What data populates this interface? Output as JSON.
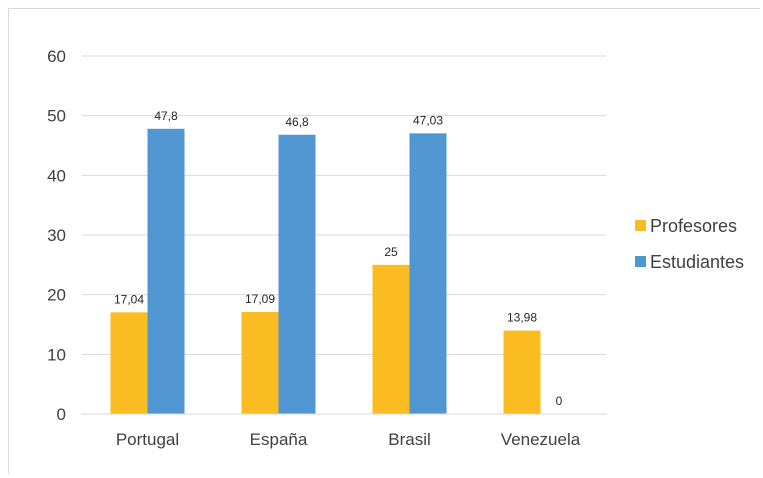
{
  "chart_data": {
    "type": "bar",
    "categories": [
      "Portugal",
      "España",
      "Brasil",
      "Venezuela"
    ],
    "series": [
      {
        "name": "Profesores",
        "values": [
          17.04,
          17.09,
          25,
          13.98
        ],
        "labels": [
          "17,04",
          "17,09",
          "25",
          "13,98"
        ],
        "color": "#FBBC21"
      },
      {
        "name": "Estudiantes",
        "values": [
          47.8,
          46.8,
          47.03,
          0
        ],
        "labels": [
          "47,8",
          "46,8",
          "47,03",
          "0"
        ],
        "color": "#4F96D3"
      }
    ],
    "yticks": [
      "0",
      "10",
      "20",
      "30",
      "40",
      "50",
      "60"
    ],
    "ylim": [
      0,
      60
    ],
    "grid": true,
    "legend_position": "right"
  }
}
